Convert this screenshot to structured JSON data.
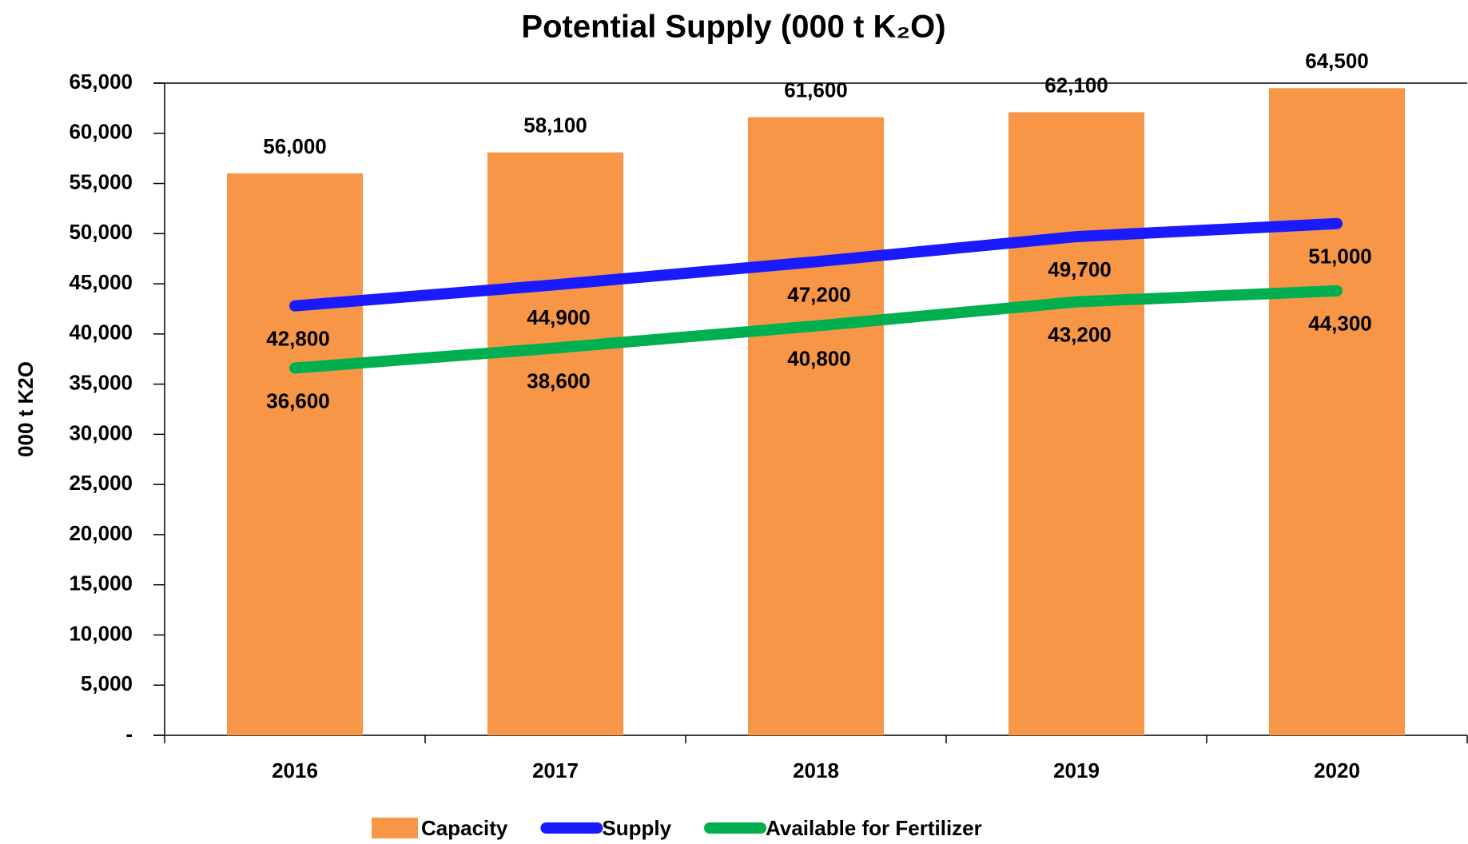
{
  "chart_data": {
    "type": "bar_line",
    "title": "Potential Supply (000 t K₂O)",
    "y_label": "000 t K2O",
    "categories": [
      "2016",
      "2017",
      "2018",
      "2019",
      "2020"
    ],
    "series": [
      {
        "name": "Capacity",
        "type": "bar",
        "color": "#f79646",
        "values": [
          56000,
          58100,
          61600,
          62100,
          64500
        ],
        "value_labels": [
          "56,000",
          "58,100",
          "61,600",
          "62,100",
          "64,500"
        ]
      },
      {
        "name": "Supply",
        "type": "line",
        "color": "#1a1aff",
        "values": [
          42800,
          44900,
          47200,
          49700,
          51000
        ],
        "value_labels": [
          "42,800",
          "44,900",
          "47,200",
          "49,700",
          "51,000"
        ]
      },
      {
        "name": "Available for Fertilizer",
        "type": "line",
        "color": "#00b050",
        "values": [
          36600,
          38600,
          40800,
          43200,
          44300
        ],
        "value_labels": [
          "36,600",
          "38,600",
          "40,800",
          "43,200",
          "44,300"
        ]
      }
    ],
    "ylim": [
      0,
      65000
    ],
    "yticks": [
      {
        "value": 0,
        "label": "-"
      },
      {
        "value": 5000,
        "label": "5,000"
      },
      {
        "value": 10000,
        "label": "10,000"
      },
      {
        "value": 15000,
        "label": "15,000"
      },
      {
        "value": 20000,
        "label": "20,000"
      },
      {
        "value": 25000,
        "label": "25,000"
      },
      {
        "value": 30000,
        "label": "30,000"
      },
      {
        "value": 35000,
        "label": "35,000"
      },
      {
        "value": 40000,
        "label": "40,000"
      },
      {
        "value": 45000,
        "label": "45,000"
      },
      {
        "value": 50000,
        "label": "50,000"
      },
      {
        "value": 55000,
        "label": "55,000"
      },
      {
        "value": 60000,
        "label": "60,000"
      },
      {
        "value": 65000,
        "label": "65,000"
      }
    ],
    "grid": false,
    "legend": "bottom"
  }
}
